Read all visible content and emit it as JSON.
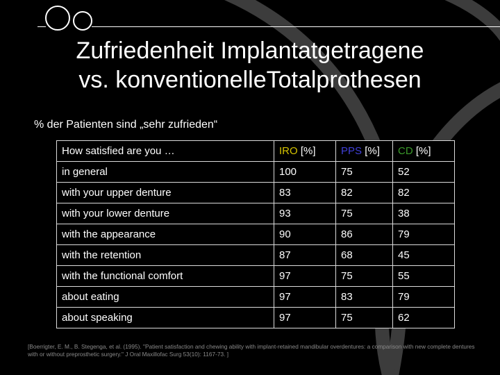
{
  "slide": {
    "title_line1": "Zufriedenheit Implantatgetragene",
    "title_line2": "vs. konventionelleTotalprothesen",
    "subtitle": "% der Patienten sind „sehr zufrieden“"
  },
  "table": {
    "header": {
      "question": "How satisfied are you …",
      "iro": "IRO",
      "pps": "PPS",
      "cd": "CD",
      "unit": "[%]"
    },
    "rows": [
      {
        "label": "in general",
        "iro": "100",
        "pps": "75",
        "cd": "52"
      },
      {
        "label": "with your upper denture",
        "iro": "83",
        "pps": "82",
        "cd": "82"
      },
      {
        "label": "with your lower denture",
        "iro": "93",
        "pps": "75",
        "cd": "38"
      },
      {
        "label": "with the appearance",
        "iro": "90",
        "pps": "86",
        "cd": "79"
      },
      {
        "label": "with the retention",
        "iro": "87",
        "pps": "68",
        "cd": "45"
      },
      {
        "label": "with the functional comfort",
        "iro": "97",
        "pps": "75",
        "cd": "55"
      },
      {
        "label": "about eating",
        "iro": "97",
        "pps": "83",
        "cd": "79"
      },
      {
        "label": "about speaking",
        "iro": "97",
        "pps": "75",
        "cd": "62"
      }
    ]
  },
  "reference": {
    "text": "[Boerrigter, E. M., B. Stegenga, et al. (1995). \"Patient satisfaction and chewing ability with implant-retained mandibular overdentures: a comparison with new complete dentures with or without preprosthetic surgery.\" J Oral Maxillofac Surg 53(10): 1167-73. ]"
  },
  "colors": {
    "background": "#000000",
    "iro": "#d6c400",
    "pps": "#4040d8",
    "cd": "#3a9a2a",
    "decoration_arc": "#3c3c3c"
  },
  "icons": [
    "double-circle-logo-icon",
    "arc-decoration"
  ]
}
